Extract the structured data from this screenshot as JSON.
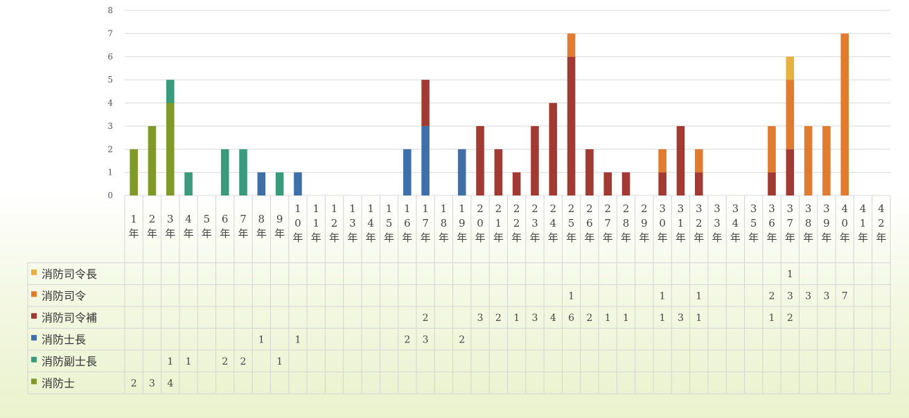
{
  "chart_data": {
    "type": "bar",
    "stacked": true,
    "data_table": true,
    "grid": true,
    "ylim": [
      0,
      8
    ],
    "yticks": [
      "0",
      "1",
      "2",
      "3",
      "4",
      "5",
      "6",
      "7",
      "8"
    ],
    "categories": [
      "1年",
      "2年",
      "3年",
      "4年",
      "5年",
      "6年",
      "7年",
      "8年",
      "9年",
      "10年",
      "11年",
      "12年",
      "13年",
      "14年",
      "15年",
      "16年",
      "17年",
      "18年",
      "19年",
      "20年",
      "21年",
      "22年",
      "23年",
      "24年",
      "25年",
      "26年",
      "27年",
      "28年",
      "29年",
      "30年",
      "31年",
      "32年",
      "33年",
      "34年",
      "35年",
      "36年",
      "37年",
      "38年",
      "39年",
      "40年",
      "41年",
      "42年"
    ],
    "series": [
      {
        "name": "消防士",
        "color": "#7f9a2a",
        "values": [
          2,
          3,
          4,
          null,
          null,
          null,
          null,
          null,
          null,
          null,
          null,
          null,
          null,
          null,
          null,
          null,
          null,
          null,
          null,
          null,
          null,
          null,
          null,
          null,
          null,
          null,
          null,
          null,
          null,
          null,
          null,
          null,
          null,
          null,
          null,
          null,
          null,
          null,
          null,
          null,
          null,
          null
        ]
      },
      {
        "name": "消防副士長",
        "color": "#3a9a7c",
        "values": [
          null,
          null,
          1,
          1,
          null,
          2,
          2,
          null,
          1,
          null,
          null,
          null,
          null,
          null,
          null,
          null,
          null,
          null,
          null,
          null,
          null,
          null,
          null,
          null,
          null,
          null,
          null,
          null,
          null,
          null,
          null,
          null,
          null,
          null,
          null,
          null,
          null,
          null,
          null,
          null,
          null,
          null
        ]
      },
      {
        "name": "消防士長",
        "color": "#3f6fa8",
        "values": [
          null,
          null,
          null,
          null,
          null,
          null,
          null,
          1,
          null,
          1,
          null,
          null,
          null,
          null,
          null,
          2,
          3,
          null,
          2,
          null,
          null,
          null,
          null,
          null,
          null,
          null,
          null,
          null,
          null,
          null,
          null,
          null,
          null,
          null,
          null,
          null,
          null,
          null,
          null,
          null,
          null,
          null
        ]
      },
      {
        "name": "消防司令補",
        "color": "#a23a34",
        "values": [
          null,
          null,
          null,
          null,
          null,
          null,
          null,
          null,
          null,
          null,
          null,
          null,
          null,
          null,
          null,
          null,
          2,
          null,
          null,
          3,
          2,
          1,
          3,
          4,
          6,
          2,
          1,
          1,
          null,
          1,
          3,
          1,
          null,
          null,
          null,
          1,
          2,
          null,
          null,
          null,
          null,
          null
        ]
      },
      {
        "name": "消防司令",
        "color": "#e07b30",
        "values": [
          null,
          null,
          null,
          null,
          null,
          null,
          null,
          null,
          null,
          null,
          null,
          null,
          null,
          null,
          null,
          null,
          null,
          null,
          null,
          null,
          null,
          null,
          null,
          null,
          1,
          null,
          null,
          null,
          null,
          1,
          null,
          1,
          null,
          null,
          null,
          2,
          3,
          3,
          3,
          7,
          null,
          null
        ]
      },
      {
        "name": "消防司令長",
        "color": "#e6b13c",
        "values": [
          null,
          null,
          null,
          null,
          null,
          null,
          null,
          null,
          null,
          null,
          null,
          null,
          null,
          null,
          null,
          null,
          null,
          null,
          null,
          null,
          null,
          null,
          null,
          null,
          null,
          null,
          null,
          null,
          null,
          null,
          null,
          null,
          null,
          null,
          null,
          null,
          1,
          null,
          null,
          null,
          null,
          null
        ]
      }
    ],
    "legend_placement": "left of data table"
  }
}
